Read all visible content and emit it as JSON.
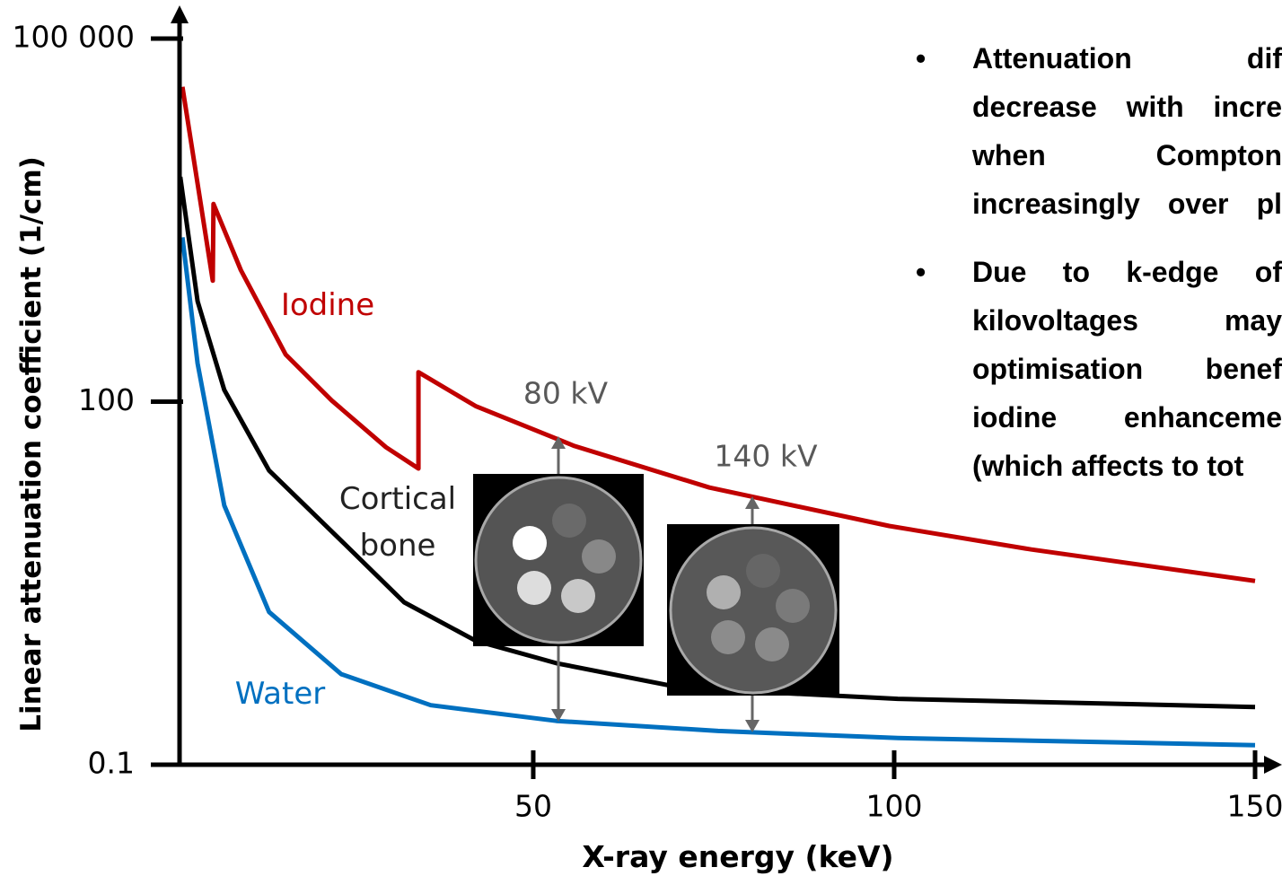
{
  "chart_data": {
    "type": "line",
    "xlabel": "X-ray energy (keV)",
    "ylabel": "Linear attenuation coefficient (1/cm)",
    "xlim": [
      1,
      150
    ],
    "xticks": [
      50,
      100,
      150
    ],
    "ylim": [
      0.1,
      100000
    ],
    "log_y": true,
    "yticks": [
      0.1,
      100,
      {
        "value": 100000,
        "label": "100 000"
      }
    ],
    "series": [
      {
        "name": "Iodine",
        "color": "#c00000",
        "x": [
          1.4,
          5.6,
          5.7,
          9.5,
          15.7,
          22.1,
          29.6,
          34.1,
          34.1,
          42,
          55.7,
          74.4,
          99.3,
          119,
          150
        ],
        "values": [
          40000,
          1000,
          4300,
          1220,
          245,
          102,
          42,
          28,
          175,
          92,
          43,
          19.5,
          9.4,
          6.0,
          3.3
        ]
      },
      {
        "name": "Cortical bone",
        "color": "#000000",
        "x": [
          1.1,
          3.5,
          7.2,
          13.4,
          23.4,
          32.1,
          42,
          53.2,
          70.7,
          100.5,
          150
        ],
        "values": [
          7200,
          675,
          125,
          27,
          7.1,
          2.2,
          1.06,
          0.69,
          0.43,
          0.35,
          0.3
        ]
      },
      {
        "name": "Water",
        "color": "#0070c0",
        "x": [
          1.4,
          3.5,
          7.2,
          13.4,
          23.4,
          35.8,
          53.2,
          75.6,
          100.5,
          150
        ],
        "values": [
          2280,
          207,
          13.9,
          1.83,
          0.56,
          0.31,
          0.23,
          0.19,
          0.166,
          0.145
        ]
      }
    ],
    "annotations": [
      "80 kV",
      "140 kV"
    ]
  },
  "text_panel": {
    "bullets": [
      {
        "lines": [
          "Attenuation dif",
          "decrease with incre",
          "when Compton",
          "increasingly over pl"
        ]
      },
      {
        "lines": [
          "Due to k-edge of",
          "kilovoltages may",
          "optimisation benef",
          "iodine enhanceme",
          "(which affects to tot"
        ]
      }
    ]
  }
}
